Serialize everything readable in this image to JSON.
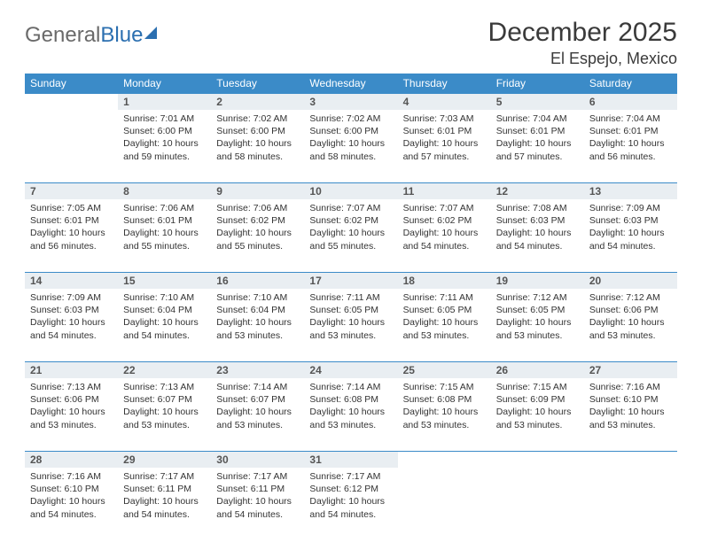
{
  "brand": {
    "part1": "General",
    "part2": "Blue"
  },
  "title": "December 2025",
  "location": "El Espejo, Mexico",
  "colors": {
    "header_bg": "#3b8bc8",
    "header_text": "#ffffff",
    "daynum_bg": "#e9eef2",
    "daynum_text": "#555555",
    "rule": "#3b8bc8",
    "body_text": "#333333",
    "title_text": "#3a3a3a",
    "logo_gray": "#6a6a6a",
    "logo_blue": "#2b6fb0"
  },
  "weekdays": [
    "Sunday",
    "Monday",
    "Tuesday",
    "Wednesday",
    "Thursday",
    "Friday",
    "Saturday"
  ],
  "weeks": [
    [
      null,
      {
        "n": "1",
        "sr": "Sunrise: 7:01 AM",
        "ss": "Sunset: 6:00 PM",
        "d1": "Daylight: 10 hours",
        "d2": "and 59 minutes."
      },
      {
        "n": "2",
        "sr": "Sunrise: 7:02 AM",
        "ss": "Sunset: 6:00 PM",
        "d1": "Daylight: 10 hours",
        "d2": "and 58 minutes."
      },
      {
        "n": "3",
        "sr": "Sunrise: 7:02 AM",
        "ss": "Sunset: 6:00 PM",
        "d1": "Daylight: 10 hours",
        "d2": "and 58 minutes."
      },
      {
        "n": "4",
        "sr": "Sunrise: 7:03 AM",
        "ss": "Sunset: 6:01 PM",
        "d1": "Daylight: 10 hours",
        "d2": "and 57 minutes."
      },
      {
        "n": "5",
        "sr": "Sunrise: 7:04 AM",
        "ss": "Sunset: 6:01 PM",
        "d1": "Daylight: 10 hours",
        "d2": "and 57 minutes."
      },
      {
        "n": "6",
        "sr": "Sunrise: 7:04 AM",
        "ss": "Sunset: 6:01 PM",
        "d1": "Daylight: 10 hours",
        "d2": "and 56 minutes."
      }
    ],
    [
      {
        "n": "7",
        "sr": "Sunrise: 7:05 AM",
        "ss": "Sunset: 6:01 PM",
        "d1": "Daylight: 10 hours",
        "d2": "and 56 minutes."
      },
      {
        "n": "8",
        "sr": "Sunrise: 7:06 AM",
        "ss": "Sunset: 6:01 PM",
        "d1": "Daylight: 10 hours",
        "d2": "and 55 minutes."
      },
      {
        "n": "9",
        "sr": "Sunrise: 7:06 AM",
        "ss": "Sunset: 6:02 PM",
        "d1": "Daylight: 10 hours",
        "d2": "and 55 minutes."
      },
      {
        "n": "10",
        "sr": "Sunrise: 7:07 AM",
        "ss": "Sunset: 6:02 PM",
        "d1": "Daylight: 10 hours",
        "d2": "and 55 minutes."
      },
      {
        "n": "11",
        "sr": "Sunrise: 7:07 AM",
        "ss": "Sunset: 6:02 PM",
        "d1": "Daylight: 10 hours",
        "d2": "and 54 minutes."
      },
      {
        "n": "12",
        "sr": "Sunrise: 7:08 AM",
        "ss": "Sunset: 6:03 PM",
        "d1": "Daylight: 10 hours",
        "d2": "and 54 minutes."
      },
      {
        "n": "13",
        "sr": "Sunrise: 7:09 AM",
        "ss": "Sunset: 6:03 PM",
        "d1": "Daylight: 10 hours",
        "d2": "and 54 minutes."
      }
    ],
    [
      {
        "n": "14",
        "sr": "Sunrise: 7:09 AM",
        "ss": "Sunset: 6:03 PM",
        "d1": "Daylight: 10 hours",
        "d2": "and 54 minutes."
      },
      {
        "n": "15",
        "sr": "Sunrise: 7:10 AM",
        "ss": "Sunset: 6:04 PM",
        "d1": "Daylight: 10 hours",
        "d2": "and 54 minutes."
      },
      {
        "n": "16",
        "sr": "Sunrise: 7:10 AM",
        "ss": "Sunset: 6:04 PM",
        "d1": "Daylight: 10 hours",
        "d2": "and 53 minutes."
      },
      {
        "n": "17",
        "sr": "Sunrise: 7:11 AM",
        "ss": "Sunset: 6:05 PM",
        "d1": "Daylight: 10 hours",
        "d2": "and 53 minutes."
      },
      {
        "n": "18",
        "sr": "Sunrise: 7:11 AM",
        "ss": "Sunset: 6:05 PM",
        "d1": "Daylight: 10 hours",
        "d2": "and 53 minutes."
      },
      {
        "n": "19",
        "sr": "Sunrise: 7:12 AM",
        "ss": "Sunset: 6:05 PM",
        "d1": "Daylight: 10 hours",
        "d2": "and 53 minutes."
      },
      {
        "n": "20",
        "sr": "Sunrise: 7:12 AM",
        "ss": "Sunset: 6:06 PM",
        "d1": "Daylight: 10 hours",
        "d2": "and 53 minutes."
      }
    ],
    [
      {
        "n": "21",
        "sr": "Sunrise: 7:13 AM",
        "ss": "Sunset: 6:06 PM",
        "d1": "Daylight: 10 hours",
        "d2": "and 53 minutes."
      },
      {
        "n": "22",
        "sr": "Sunrise: 7:13 AM",
        "ss": "Sunset: 6:07 PM",
        "d1": "Daylight: 10 hours",
        "d2": "and 53 minutes."
      },
      {
        "n": "23",
        "sr": "Sunrise: 7:14 AM",
        "ss": "Sunset: 6:07 PM",
        "d1": "Daylight: 10 hours",
        "d2": "and 53 minutes."
      },
      {
        "n": "24",
        "sr": "Sunrise: 7:14 AM",
        "ss": "Sunset: 6:08 PM",
        "d1": "Daylight: 10 hours",
        "d2": "and 53 minutes."
      },
      {
        "n": "25",
        "sr": "Sunrise: 7:15 AM",
        "ss": "Sunset: 6:08 PM",
        "d1": "Daylight: 10 hours",
        "d2": "and 53 minutes."
      },
      {
        "n": "26",
        "sr": "Sunrise: 7:15 AM",
        "ss": "Sunset: 6:09 PM",
        "d1": "Daylight: 10 hours",
        "d2": "and 53 minutes."
      },
      {
        "n": "27",
        "sr": "Sunrise: 7:16 AM",
        "ss": "Sunset: 6:10 PM",
        "d1": "Daylight: 10 hours",
        "d2": "and 53 minutes."
      }
    ],
    [
      {
        "n": "28",
        "sr": "Sunrise: 7:16 AM",
        "ss": "Sunset: 6:10 PM",
        "d1": "Daylight: 10 hours",
        "d2": "and 54 minutes."
      },
      {
        "n": "29",
        "sr": "Sunrise: 7:17 AM",
        "ss": "Sunset: 6:11 PM",
        "d1": "Daylight: 10 hours",
        "d2": "and 54 minutes."
      },
      {
        "n": "30",
        "sr": "Sunrise: 7:17 AM",
        "ss": "Sunset: 6:11 PM",
        "d1": "Daylight: 10 hours",
        "d2": "and 54 minutes."
      },
      {
        "n": "31",
        "sr": "Sunrise: 7:17 AM",
        "ss": "Sunset: 6:12 PM",
        "d1": "Daylight: 10 hours",
        "d2": "and 54 minutes."
      },
      null,
      null,
      null
    ]
  ]
}
